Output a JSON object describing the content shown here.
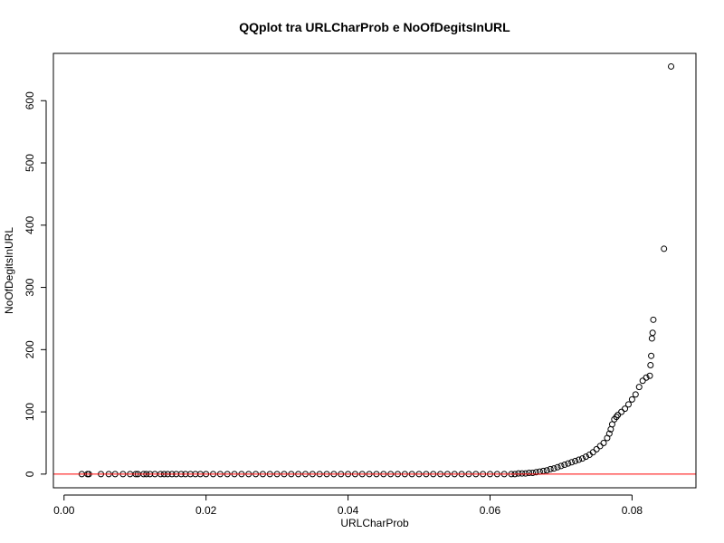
{
  "chart_data": {
    "type": "scatter",
    "title": "QQplot tra URLCharProb e NoOfDegitsInURL",
    "xlabel": "URLCharProb",
    "ylabel": "NoOfDegitsInURL",
    "xlim": [
      -0.0015,
      0.089
    ],
    "ylim": [
      -22,
      676
    ],
    "x_ticks": [
      0.0,
      0.02,
      0.04,
      0.06,
      0.08
    ],
    "x_tick_labels": [
      "0.00",
      "0.02",
      "0.04",
      "0.06",
      "0.08"
    ],
    "y_ticks": [
      0,
      100,
      200,
      300,
      400,
      500,
      600
    ],
    "y_tick_labels": [
      "0",
      "100",
      "200",
      "300",
      "400",
      "500",
      "600"
    ],
    "grid": false,
    "reference_line": {
      "y": 0,
      "color": "#ff0000"
    },
    "points": [
      [
        0.0025,
        0
      ],
      [
        0.0033,
        0
      ],
      [
        0.0035,
        0
      ],
      [
        0.0052,
        0
      ],
      [
        0.0063,
        0
      ],
      [
        0.0072,
        0
      ],
      [
        0.0083,
        0
      ],
      [
        0.0093,
        0
      ],
      [
        0.0101,
        0
      ],
      [
        0.0104,
        0
      ],
      [
        0.0112,
        0
      ],
      [
        0.0116,
        0
      ],
      [
        0.0121,
        0
      ],
      [
        0.0128,
        0
      ],
      [
        0.0136,
        0
      ],
      [
        0.0141,
        0
      ],
      [
        0.0146,
        0
      ],
      [
        0.0152,
        0
      ],
      [
        0.0158,
        0
      ],
      [
        0.0165,
        0
      ],
      [
        0.0171,
        0
      ],
      [
        0.0178,
        0
      ],
      [
        0.0185,
        0
      ],
      [
        0.0192,
        0
      ],
      [
        0.02,
        0
      ],
      [
        0.021,
        0
      ],
      [
        0.022,
        0
      ],
      [
        0.023,
        0
      ],
      [
        0.024,
        0
      ],
      [
        0.025,
        0
      ],
      [
        0.026,
        0
      ],
      [
        0.027,
        0
      ],
      [
        0.028,
        0
      ],
      [
        0.029,
        0
      ],
      [
        0.03,
        0
      ],
      [
        0.031,
        0
      ],
      [
        0.032,
        0
      ],
      [
        0.033,
        0
      ],
      [
        0.034,
        0
      ],
      [
        0.035,
        0
      ],
      [
        0.036,
        0
      ],
      [
        0.037,
        0
      ],
      [
        0.038,
        0
      ],
      [
        0.039,
        0
      ],
      [
        0.04,
        0
      ],
      [
        0.041,
        0
      ],
      [
        0.042,
        0
      ],
      [
        0.043,
        0
      ],
      [
        0.044,
        0
      ],
      [
        0.045,
        0
      ],
      [
        0.046,
        0
      ],
      [
        0.047,
        0
      ],
      [
        0.048,
        0
      ],
      [
        0.049,
        0
      ],
      [
        0.05,
        0
      ],
      [
        0.051,
        0
      ],
      [
        0.052,
        0
      ],
      [
        0.053,
        0
      ],
      [
        0.054,
        0
      ],
      [
        0.055,
        0
      ],
      [
        0.056,
        0
      ],
      [
        0.057,
        0
      ],
      [
        0.058,
        0
      ],
      [
        0.059,
        0
      ],
      [
        0.06,
        0
      ],
      [
        0.061,
        0
      ],
      [
        0.062,
        0
      ],
      [
        0.063,
        0
      ],
      [
        0.0635,
        0
      ],
      [
        0.064,
        1
      ],
      [
        0.0645,
        1
      ],
      [
        0.065,
        1
      ],
      [
        0.0655,
        2
      ],
      [
        0.066,
        2
      ],
      [
        0.0665,
        3
      ],
      [
        0.067,
        4
      ],
      [
        0.0675,
        5
      ],
      [
        0.068,
        6
      ],
      [
        0.0685,
        8
      ],
      [
        0.069,
        9
      ],
      [
        0.0695,
        11
      ],
      [
        0.07,
        13
      ],
      [
        0.0705,
        15
      ],
      [
        0.071,
        17
      ],
      [
        0.0715,
        19
      ],
      [
        0.072,
        21
      ],
      [
        0.0725,
        23
      ],
      [
        0.073,
        25
      ],
      [
        0.0735,
        28
      ],
      [
        0.074,
        31
      ],
      [
        0.0745,
        35
      ],
      [
        0.075,
        40
      ],
      [
        0.0755,
        45
      ],
      [
        0.076,
        50
      ],
      [
        0.0765,
        58
      ],
      [
        0.0768,
        65
      ],
      [
        0.077,
        72
      ],
      [
        0.0772,
        80
      ],
      [
        0.0775,
        88
      ],
      [
        0.0778,
        92
      ],
      [
        0.078,
        95
      ],
      [
        0.0785,
        100
      ],
      [
        0.079,
        105
      ],
      [
        0.0795,
        112
      ],
      [
        0.08,
        120
      ],
      [
        0.0805,
        128
      ],
      [
        0.081,
        140
      ],
      [
        0.0815,
        150
      ],
      [
        0.082,
        155
      ],
      [
        0.0825,
        158
      ],
      [
        0.0826,
        175
      ],
      [
        0.0827,
        190
      ],
      [
        0.0828,
        218
      ],
      [
        0.0829,
        227
      ],
      [
        0.083,
        248
      ],
      [
        0.0845,
        362
      ],
      [
        0.0855,
        655
      ]
    ]
  }
}
